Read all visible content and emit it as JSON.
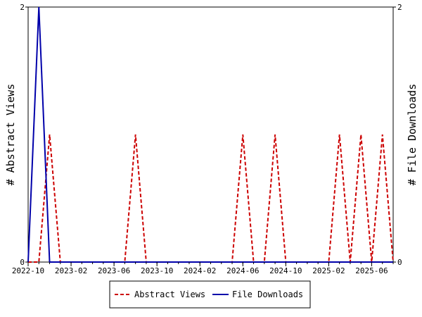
{
  "chart_data": {
    "type": "line",
    "ylabel_left": "# Abstract Views",
    "ylabel_right": "# File Downloads",
    "x_tick_labels": [
      "2022-10",
      "2023-02",
      "2023-06",
      "2023-10",
      "2024-02",
      "2024-06",
      "2024-10",
      "2025-02",
      "2025-06"
    ],
    "x_ticks": [
      "2022-10",
      "2023-02",
      "2023-06",
      "2023-10",
      "2024-02",
      "2024-06",
      "2024-10",
      "2025-02",
      "2025-06"
    ],
    "x_range": [
      "2022-10",
      "2025-08"
    ],
    "y_left_range": [
      0,
      2
    ],
    "y_left_ticks": [
      "0",
      "2"
    ],
    "y_right_range": [
      0,
      2
    ],
    "y_right_ticks": [
      "0",
      "2"
    ],
    "grid": false,
    "legend_position": "bottom",
    "series": [
      {
        "name": "Abstract Views",
        "axis": "left",
        "color": "#cc0000",
        "style": "dashed",
        "x": [
          "2022-10",
          "2022-11",
          "2022-12",
          "2023-01",
          "2023-02",
          "2023-03",
          "2023-04",
          "2023-05",
          "2023-06",
          "2023-07",
          "2023-08",
          "2023-09",
          "2023-10",
          "2023-11",
          "2023-12",
          "2024-01",
          "2024-02",
          "2024-03",
          "2024-04",
          "2024-05",
          "2024-06",
          "2024-07",
          "2024-08",
          "2024-09",
          "2024-10",
          "2024-11",
          "2024-12",
          "2025-01",
          "2025-02",
          "2025-03",
          "2025-04",
          "2025-05",
          "2025-06",
          "2025-07",
          "2025-08"
        ],
        "values": [
          0,
          0,
          1,
          0,
          0,
          0,
          0,
          0,
          0,
          0,
          1,
          0,
          0,
          0,
          0,
          0,
          0,
          0,
          0,
          0,
          1,
          0,
          0,
          1,
          0,
          0,
          0,
          0,
          0,
          1,
          0,
          1,
          0,
          1,
          0
        ]
      },
      {
        "name": "File Downloads",
        "axis": "right",
        "color": "#0000aa",
        "style": "solid",
        "x": [
          "2022-10",
          "2022-11",
          "2022-12",
          "2023-01",
          "2023-02",
          "2023-03",
          "2023-04",
          "2023-05",
          "2023-06",
          "2023-07",
          "2023-08",
          "2023-09",
          "2023-10",
          "2023-11",
          "2023-12",
          "2024-01",
          "2024-02",
          "2024-03",
          "2024-04",
          "2024-05",
          "2024-06",
          "2024-07",
          "2024-08",
          "2024-09",
          "2024-10",
          "2024-11",
          "2024-12",
          "2025-01",
          "2025-02",
          "2025-03",
          "2025-04",
          "2025-05",
          "2025-06",
          "2025-07",
          "2025-08"
        ],
        "values": [
          0,
          2,
          0,
          0,
          0,
          0,
          0,
          0,
          0,
          0,
          0,
          0,
          0,
          0,
          0,
          0,
          0,
          0,
          0,
          0,
          0,
          0,
          0,
          0,
          0,
          0,
          0,
          0,
          0,
          0,
          0,
          0,
          0,
          0,
          0
        ]
      }
    ]
  }
}
